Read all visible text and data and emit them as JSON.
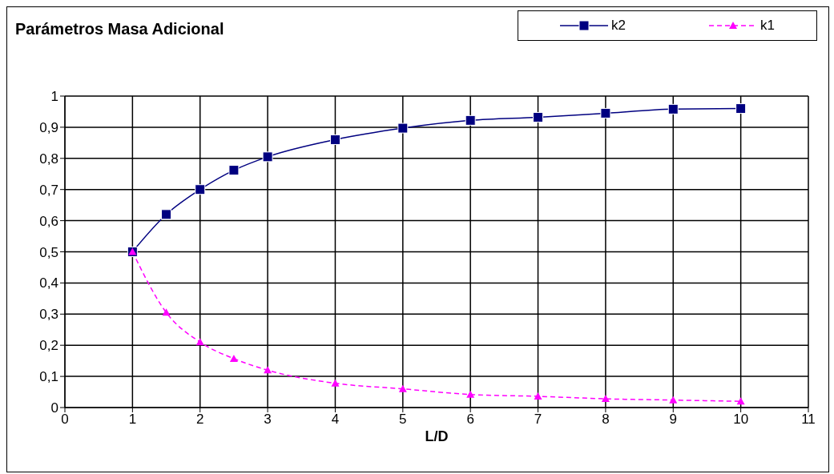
{
  "chart_data": {
    "type": "line",
    "title": "Parámetros Masa Adicional",
    "xlabel": "L/D",
    "x": [
      1,
      1.5,
      2,
      2.5,
      3,
      4,
      5,
      6,
      7,
      8,
      9,
      10
    ],
    "series": [
      {
        "name": "k2",
        "color": "#000080",
        "marker": "square",
        "line_style": "solid",
        "values": [
          0.5,
          0.62,
          0.7,
          0.762,
          0.805,
          0.86,
          0.897,
          0.922,
          0.932,
          0.945,
          0.958,
          0.96
        ]
      },
      {
        "name": "k1",
        "color": "#ff00ff",
        "marker": "triangle",
        "line_style": "dashed",
        "values": [
          0.5,
          0.305,
          0.21,
          0.157,
          0.12,
          0.078,
          0.06,
          0.042,
          0.036,
          0.028,
          0.024,
          0.02
        ]
      }
    ],
    "xlim": [
      0,
      11
    ],
    "xticks": [
      0,
      1,
      2,
      3,
      4,
      5,
      6,
      7,
      8,
      9,
      10,
      11
    ],
    "ylim": [
      0,
      1
    ],
    "yticks": [
      {
        "value": 0,
        "label": "0"
      },
      {
        "value": 0.1,
        "label": "0,1"
      },
      {
        "value": 0.2,
        "label": "0,2"
      },
      {
        "value": 0.3,
        "label": "0,3"
      },
      {
        "value": 0.4,
        "label": "0,4"
      },
      {
        "value": 0.5,
        "label": "0,5"
      },
      {
        "value": 0.6,
        "label": "0,6"
      },
      {
        "value": 0.7,
        "label": "0,7"
      },
      {
        "value": 0.8,
        "label": "0,8"
      },
      {
        "value": 0.9,
        "label": "0,9"
      },
      {
        "value": 1,
        "label": "1"
      }
    ],
    "grid": true,
    "legend": "top right"
  }
}
